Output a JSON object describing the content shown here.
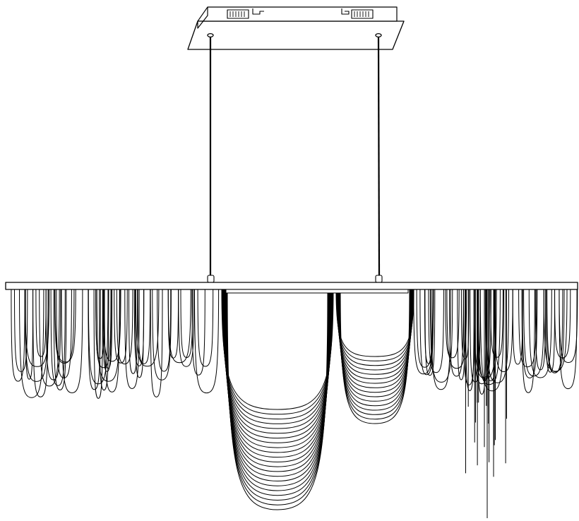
{
  "drawing": {
    "subject": "linear-chain-chandelier",
    "style": "black-line-art",
    "colors": {
      "line": "#000000",
      "background": "#ffffff"
    },
    "canopy": {
      "junction_boxes": 2,
      "hooks": 2
    },
    "suspension_rods": 2,
    "chain_groups": [
      {
        "name": "left-fringe",
        "loop_count": 45
      },
      {
        "name": "center-large-swag",
        "loop_count": 22
      },
      {
        "name": "center-small-swag",
        "loop_count": 16
      },
      {
        "name": "right-fringe",
        "loop_count": 40
      },
      {
        "name": "right-drop-strands",
        "strand_count": 18
      }
    ]
  }
}
